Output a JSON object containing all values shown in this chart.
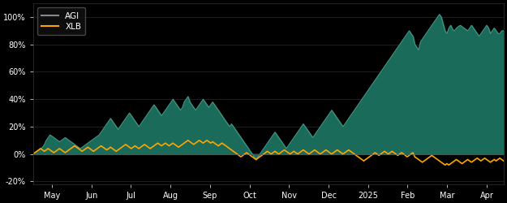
{
  "background_color": "#000000",
  "plot_bg_color": "#000000",
  "agi_fill_color": "#1a6b5a",
  "agi_line_color": "#4a9a8a",
  "xlb_line_color": "#FFA500",
  "legend_labels": [
    "AGI",
    "XLB"
  ],
  "legend_line_colors": [
    "#888888",
    "#FFA500"
  ],
  "x_tick_labels": [
    "May",
    "Jun",
    "Jul",
    "Aug",
    "Sep",
    "Oct",
    "Nov",
    "Dec",
    "2025",
    "Feb",
    "Mar",
    "Apr"
  ],
  "y_tick_labels": [
    "-20%",
    "0%",
    "20%",
    "40%",
    "60%",
    "80%",
    "100%"
  ],
  "ytick_positions": [
    -20,
    0,
    20,
    40,
    60,
    80,
    100
  ],
  "ylim": [
    -22,
    110
  ],
  "agi_data": [
    0,
    1,
    2,
    3,
    4,
    5,
    7,
    10,
    12,
    14,
    13,
    12,
    11,
    10,
    9,
    10,
    11,
    12,
    11,
    10,
    9,
    8,
    7,
    6,
    5,
    4,
    5,
    6,
    7,
    8,
    9,
    10,
    11,
    12,
    13,
    14,
    16,
    18,
    20,
    22,
    24,
    26,
    24,
    22,
    20,
    18,
    20,
    22,
    24,
    26,
    28,
    30,
    28,
    26,
    24,
    22,
    20,
    22,
    24,
    26,
    28,
    30,
    32,
    34,
    36,
    34,
    32,
    30,
    28,
    30,
    32,
    34,
    36,
    38,
    40,
    38,
    36,
    34,
    32,
    34,
    38,
    40,
    42,
    38,
    36,
    34,
    32,
    34,
    36,
    38,
    40,
    38,
    36,
    34,
    36,
    38,
    36,
    34,
    32,
    30,
    28,
    26,
    24,
    22,
    20,
    22,
    20,
    18,
    16,
    14,
    12,
    10,
    8,
    6,
    4,
    2,
    0,
    -2,
    -4,
    -2,
    0,
    2,
    4,
    6,
    8,
    10,
    12,
    14,
    16,
    14,
    12,
    10,
    8,
    6,
    4,
    6,
    8,
    10,
    12,
    14,
    16,
    18,
    20,
    22,
    20,
    18,
    16,
    14,
    12,
    14,
    16,
    18,
    20,
    22,
    24,
    26,
    28,
    30,
    32,
    30,
    28,
    26,
    24,
    22,
    20,
    22,
    24,
    26,
    28,
    30,
    32,
    34,
    36,
    38,
    40,
    42,
    44,
    46,
    48,
    50,
    52,
    54,
    56,
    58,
    60,
    62,
    64,
    66,
    68,
    70,
    72,
    74,
    76,
    78,
    80,
    82,
    84,
    86,
    88,
    90,
    88,
    86,
    80,
    78,
    76,
    82,
    84,
    86,
    88,
    90,
    92,
    94,
    96,
    98,
    100,
    102,
    100,
    95,
    90,
    88,
    92,
    94,
    91,
    90,
    92,
    93,
    94,
    93,
    92,
    91,
    90,
    92,
    94,
    92,
    90,
    88,
    86,
    88,
    90,
    92,
    94,
    92,
    88,
    90,
    92,
    90,
    88,
    88,
    90,
    90
  ],
  "xlb_data": [
    0,
    1,
    2,
    3,
    4,
    3,
    2,
    3,
    4,
    3,
    2,
    1,
    2,
    3,
    4,
    3,
    2,
    1,
    2,
    3,
    4,
    5,
    6,
    5,
    4,
    3,
    2,
    3,
    4,
    5,
    4,
    3,
    2,
    3,
    4,
    5,
    6,
    5,
    4,
    3,
    4,
    5,
    4,
    3,
    2,
    3,
    4,
    5,
    6,
    7,
    6,
    5,
    4,
    5,
    6,
    5,
    4,
    5,
    6,
    7,
    6,
    5,
    4,
    5,
    6,
    7,
    8,
    7,
    6,
    7,
    8,
    7,
    6,
    7,
    8,
    7,
    6,
    5,
    6,
    7,
    8,
    9,
    10,
    9,
    8,
    7,
    8,
    9,
    10,
    9,
    8,
    9,
    10,
    9,
    8,
    9,
    8,
    7,
    6,
    7,
    8,
    7,
    6,
    5,
    4,
    3,
    2,
    1,
    0,
    -1,
    -2,
    -1,
    0,
    1,
    0,
    -1,
    -2,
    -3,
    -4,
    -3,
    -2,
    -1,
    0,
    1,
    2,
    1,
    0,
    1,
    2,
    1,
    0,
    1,
    2,
    3,
    2,
    1,
    0,
    1,
    2,
    1,
    0,
    1,
    2,
    3,
    2,
    1,
    0,
    1,
    2,
    3,
    2,
    1,
    0,
    1,
    2,
    3,
    2,
    1,
    0,
    1,
    2,
    3,
    2,
    1,
    0,
    1,
    2,
    3,
    2,
    1,
    0,
    -1,
    -2,
    -3,
    -4,
    -5,
    -4,
    -3,
    -2,
    -1,
    0,
    1,
    0,
    -1,
    0,
    1,
    2,
    1,
    0,
    1,
    2,
    1,
    0,
    -1,
    0,
    1,
    0,
    -1,
    -2,
    -1,
    0,
    1,
    -2,
    -3,
    -4,
    -5,
    -6,
    -5,
    -4,
    -3,
    -2,
    -1,
    -2,
    -3,
    -4,
    -5,
    -6,
    -7,
    -8,
    -7,
    -8,
    -7,
    -6,
    -5,
    -4,
    -5,
    -6,
    -7,
    -6,
    -5,
    -4,
    -5,
    -6,
    -5,
    -4,
    -3,
    -4,
    -5,
    -4,
    -3,
    -4,
    -5,
    -6,
    -5,
    -4,
    -5,
    -4,
    -3,
    -4,
    -5
  ]
}
